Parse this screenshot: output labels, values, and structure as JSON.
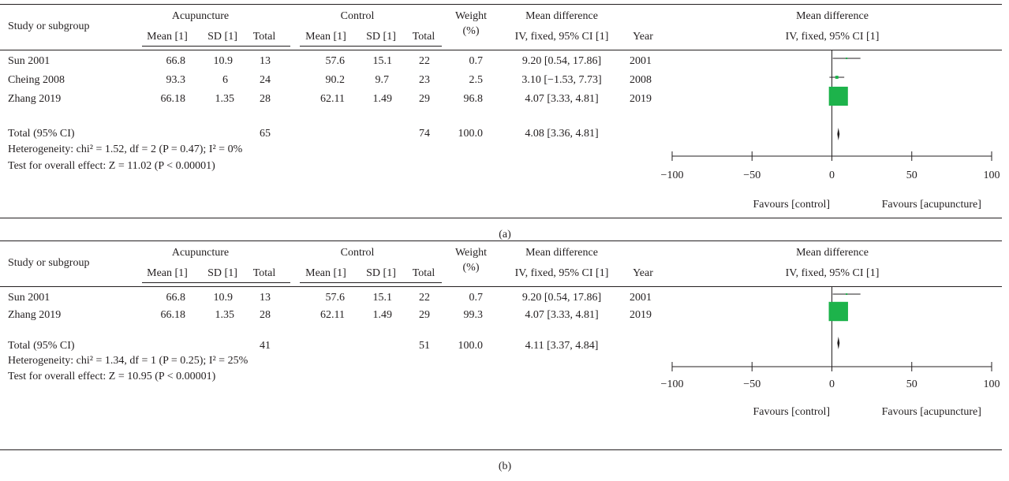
{
  "headers": {
    "study": "Study or subgroup",
    "exp_group": "Acupuncture",
    "ctl_group": "Control",
    "mean": "Mean [1]",
    "sd": "SD [1]",
    "total": "Total",
    "weight_1": "Weight",
    "weight_2": "(%)",
    "md_1": "Mean difference",
    "md_2": "IV, fixed, 95% CI [1]",
    "year": "Year",
    "plot_1": "Mean difference",
    "plot_2": "IV, fixed, 95% CI [1]"
  },
  "panels": [
    {
      "caption": "(a)",
      "rows": [
        {
          "study": "Sun 2001",
          "e_mean": "66.8",
          "e_sd": "10.9",
          "e_total": "13",
          "c_mean": "57.6",
          "c_sd": "15.1",
          "c_total": "22",
          "weight": "0.7",
          "md": "9.20 [0.54, 17.86]",
          "year": "2001"
        },
        {
          "study": "Cheing 2008",
          "e_mean": "93.3",
          "e_sd": "6",
          "e_total": "24",
          "c_mean": "90.2",
          "c_sd": "9.7",
          "c_total": "23",
          "weight": "2.5",
          "md": "3.10 [−1.53, 7.73]",
          "year": "2008"
        },
        {
          "study": "Zhang 2019",
          "e_mean": "66.18",
          "e_sd": "1.35",
          "e_total": "28",
          "c_mean": "62.11",
          "c_sd": "1.49",
          "c_total": "29",
          "weight": "96.8",
          "md": "4.07 [3.33, 4.81]",
          "year": "2019"
        }
      ],
      "total": {
        "label": "Total (95% CI)",
        "e_total": "65",
        "c_total": "74",
        "weight": "100.0",
        "md": "4.08 [3.36, 4.81]"
      },
      "heterogeneity": "Heterogeneity: chi² = 1.52, df = 2 (P = 0.47); I² = 0%",
      "overall_effect": "Test for overall effect: Z = 11.02 (P < 0.00001)"
    },
    {
      "caption": "(b)",
      "rows": [
        {
          "study": "Sun 2001",
          "e_mean": "66.8",
          "e_sd": "10.9",
          "e_total": "13",
          "c_mean": "57.6",
          "c_sd": "15.1",
          "c_total": "22",
          "weight": "0.7",
          "md": "9.20 [0.54, 17.86]",
          "year": "2001"
        },
        {
          "study": "Zhang 2019",
          "e_mean": "66.18",
          "e_sd": "1.35",
          "e_total": "28",
          "c_mean": "62.11",
          "c_sd": "1.49",
          "c_total": "29",
          "weight": "99.3",
          "md": "4.07 [3.33, 4.81]",
          "year": "2019"
        }
      ],
      "total": {
        "label": "Total (95% CI)",
        "e_total": "41",
        "c_total": "51",
        "weight": "100.0",
        "md": "4.11 [3.37, 4.84]"
      },
      "heterogeneity": "Heterogeneity: chi² = 1.34, df = 1 (P = 0.25); I² = 25%",
      "overall_effect": "Test for overall effect: Z = 10.95 (P < 0.00001)"
    }
  ],
  "chart_data": [
    {
      "type": "forest",
      "xlim": [
        -100,
        100
      ],
      "ticks": [
        -100,
        -50,
        0,
        50,
        100
      ],
      "favours_left": "Favours [control]",
      "favours_right": "Favours [acupuncture]",
      "square_color": "#1db34b",
      "studies": [
        {
          "name": "Sun 2001",
          "est": 9.2,
          "lo": 0.54,
          "hi": 17.86,
          "weight": 0.7
        },
        {
          "name": "Cheing 2008",
          "est": 3.1,
          "lo": -1.53,
          "hi": 7.73,
          "weight": 2.5
        },
        {
          "name": "Zhang 2019",
          "est": 4.07,
          "lo": 3.33,
          "hi": 4.81,
          "weight": 96.8
        }
      ],
      "pooled": {
        "est": 4.08,
        "lo": 3.36,
        "hi": 4.81
      }
    },
    {
      "type": "forest",
      "xlim": [
        -100,
        100
      ],
      "ticks": [
        -100,
        -50,
        0,
        50,
        100
      ],
      "favours_left": "Favours [control]",
      "favours_right": "Favours [acupuncture]",
      "square_color": "#1db34b",
      "studies": [
        {
          "name": "Sun 2001",
          "est": 9.2,
          "lo": 0.54,
          "hi": 17.86,
          "weight": 0.7
        },
        {
          "name": "Zhang 2019",
          "est": 4.07,
          "lo": 3.33,
          "hi": 4.81,
          "weight": 99.3
        }
      ],
      "pooled": {
        "est": 4.11,
        "lo": 3.37,
        "hi": 4.84
      }
    }
  ]
}
